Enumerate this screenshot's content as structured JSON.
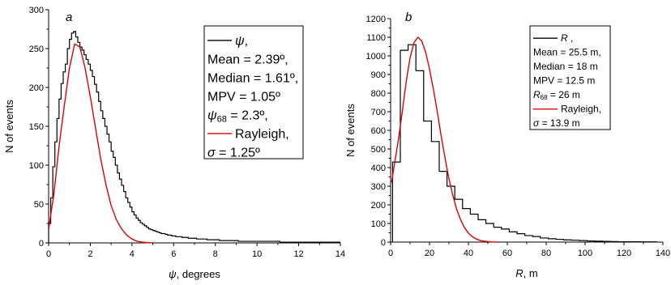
{
  "chart_data": [
    {
      "type": "line",
      "panel_label": "a",
      "xlabel_symbol": "ψ",
      "xlabel_rest": ", degrees",
      "ylabel": "N of events",
      "xlim": [
        0,
        14
      ],
      "ylim": [
        0,
        300
      ],
      "xticks": [
        0,
        2,
        4,
        6,
        8,
        10,
        12,
        14
      ],
      "yticks": [
        0,
        50,
        100,
        150,
        200,
        250,
        300
      ],
      "grid": false,
      "legend_position": "top-right",
      "legend": [
        {
          "type": "line",
          "color": "#000000",
          "sym": "ψ",
          "text": ","
        },
        {
          "type": "text",
          "text": "Mean = 2.39º,"
        },
        {
          "type": "text",
          "text": "Median = 1.61º,"
        },
        {
          "type": "text",
          "text": "MPV = 1.05º"
        },
        {
          "type": "text",
          "sym": "ψ",
          "sub": "68",
          "text": " = 2.3º,"
        },
        {
          "type": "line",
          "color": "#e00000",
          "text": "Rayleigh,"
        },
        {
          "type": "text",
          "sym": "σ",
          "text": " = 1.25º"
        }
      ],
      "series": [
        {
          "kind": "step",
          "color": "#000000",
          "bin_width": 0.1,
          "x_start": 0,
          "values": [
            25,
            58,
            98,
            130,
            160,
            185,
            205,
            220,
            230,
            250,
            262,
            270,
            272,
            265,
            258,
            252,
            248,
            242,
            236,
            230,
            222,
            214,
            204,
            194,
            182,
            170,
            160,
            150,
            140,
            130,
            118,
            110,
            100,
            90,
            82,
            74,
            66,
            58,
            52,
            46,
            40,
            36,
            32,
            29,
            26,
            24,
            22,
            20,
            18,
            17,
            16,
            15,
            14,
            13,
            12,
            12,
            11,
            10,
            10,
            9,
            9,
            8,
            8,
            8,
            7,
            7,
            7,
            6,
            6,
            6,
            6,
            5,
            5,
            5,
            5,
            5,
            4,
            4,
            4,
            4,
            4,
            4,
            3,
            3,
            3,
            3,
            3,
            3,
            3,
            3,
            3,
            2,
            2,
            2,
            2,
            2,
            2,
            2,
            2,
            2,
            2,
            2,
            2,
            2,
            2,
            2,
            2,
            2,
            2,
            2,
            2,
            1,
            1,
            1,
            1,
            1,
            1,
            1,
            1,
            1,
            1,
            1,
            1,
            1,
            1,
            1,
            1,
            1,
            1,
            1,
            1,
            1,
            1,
            1,
            1,
            1,
            1,
            1,
            1,
            1
          ]
        },
        {
          "kind": "curve",
          "color": "#e00000",
          "x": [
            0,
            0.1,
            0.25,
            0.5,
            0.75,
            1.0,
            1.25,
            1.5,
            1.75,
            2.0,
            2.25,
            2.5,
            2.75,
            3.0,
            3.25,
            3.5,
            3.75,
            4.0,
            4.25,
            4.5,
            4.75,
            5.0
          ],
          "y": [
            17,
            36,
            62,
            124,
            176,
            225,
            256,
            252,
            225,
            188,
            148,
            108,
            75,
            48,
            30,
            18,
            10,
            5,
            2,
            1,
            0.5,
            0
          ]
        }
      ]
    },
    {
      "type": "line",
      "panel_label": "b",
      "xlabel_symbol": "R",
      "xlabel_rest": ", m",
      "ylabel": "N of events",
      "xlim": [
        0,
        140
      ],
      "ylim": [
        0,
        1200
      ],
      "xticks": [
        0,
        20,
        40,
        60,
        80,
        100,
        120,
        140
      ],
      "yticks": [
        0,
        100,
        200,
        300,
        400,
        500,
        600,
        700,
        800,
        900,
        1000,
        1100,
        1200
      ],
      "grid": false,
      "legend_position": "top-right",
      "legend": [
        {
          "type": "line",
          "color": "#000000",
          "sym": "R",
          "text": " ,"
        },
        {
          "type": "text",
          "text": "Mean = 25.5 m,"
        },
        {
          "type": "text",
          "text": "Median = 18 m"
        },
        {
          "type": "text",
          "text": "MPV = 12.5 m"
        },
        {
          "type": "text",
          "sym": "R",
          "sub": "68",
          "text": " = 26 m"
        },
        {
          "type": "line",
          "color": "#e00000",
          "text": "Rayleigh,"
        },
        {
          "type": "text",
          "sym": "σ",
          "text": " = 13.9 m"
        }
      ],
      "series": [
        {
          "kind": "step",
          "color": "#000000",
          "bin_width": 4,
          "x_start": 1,
          "values": [
            430,
            1030,
            1060,
            920,
            650,
            540,
            380,
            300,
            230,
            180,
            150,
            120,
            100,
            80,
            70,
            55,
            45,
            35,
            30,
            22,
            18,
            15,
            12,
            10,
            8,
            6,
            5,
            4,
            3,
            2,
            2,
            2,
            1,
            1
          ]
        },
        {
          "kind": "curve",
          "color": "#e00000",
          "x": [
            0.5,
            2,
            4,
            6,
            8,
            10,
            12,
            14,
            16,
            18,
            20,
            22,
            24,
            26,
            28,
            30,
            32,
            34,
            36,
            38,
            40,
            42,
            44,
            46,
            48,
            50,
            52,
            55
          ],
          "y": [
            320,
            420,
            550,
            700,
            860,
            990,
            1070,
            1100,
            1080,
            1020,
            930,
            820,
            700,
            570,
            450,
            340,
            250,
            175,
            120,
            78,
            48,
            29,
            17,
            9,
            5,
            3,
            1,
            0
          ]
        }
      ]
    }
  ]
}
